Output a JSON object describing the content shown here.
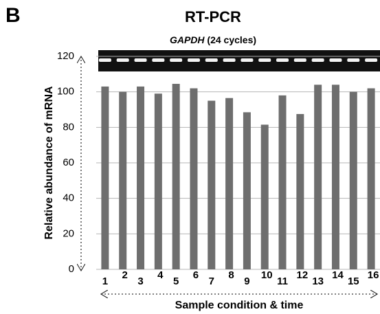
{
  "panel_label": "B",
  "chart_data": {
    "type": "bar",
    "title": "RT-PCR",
    "subtitle_gene": "GAPDH",
    "subtitle_note": "(24 cycles)",
    "x_label": "Sample condition & time",
    "y_label": "Relative abundance of mRNA",
    "categories": [
      "1",
      "2",
      "3",
      "4",
      "5",
      "6",
      "7",
      "8",
      "9",
      "10",
      "11",
      "12",
      "13",
      "14",
      "15",
      "16"
    ],
    "values": [
      103,
      100,
      103,
      99,
      104.5,
      102,
      95,
      96.5,
      88.5,
      81.5,
      98,
      87.5,
      104,
      104,
      100,
      102
    ],
    "color": "#6e6e6e",
    "ylim": [
      0,
      120
    ],
    "yticks": [
      0,
      20,
      40,
      60,
      80,
      100,
      120
    ],
    "grid": true
  }
}
